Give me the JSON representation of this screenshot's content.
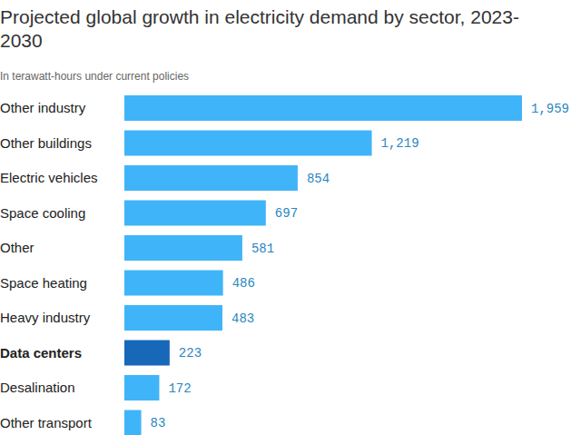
{
  "chart_data": {
    "type": "bar",
    "orientation": "horizontal",
    "title": "Projected global growth in electricity demand by sector, 2023-2030",
    "subtitle": "In terawatt-hours under current policies",
    "categories": [
      "Other industry",
      "Other buildings",
      "Electric vehicles",
      "Space cooling",
      "Other",
      "Space heating",
      "Heavy industry",
      "Data centers",
      "Desalination",
      "Other transport"
    ],
    "values": [
      1959,
      1219,
      854,
      697,
      581,
      486,
      483,
      223,
      172,
      83
    ],
    "value_labels": [
      "1,959",
      "1,219",
      "854",
      "697",
      "581",
      "486",
      "483",
      "223",
      "172",
      "83"
    ],
    "colors": [
      "#40b4f8",
      "#40b4f8",
      "#40b4f8",
      "#40b4f8",
      "#40b4f8",
      "#40b4f8",
      "#40b4f8",
      "#1768b8",
      "#40b4f8",
      "#40b4f8"
    ],
    "data_labels": true,
    "tick_labels": "y",
    "grid": false
  }
}
